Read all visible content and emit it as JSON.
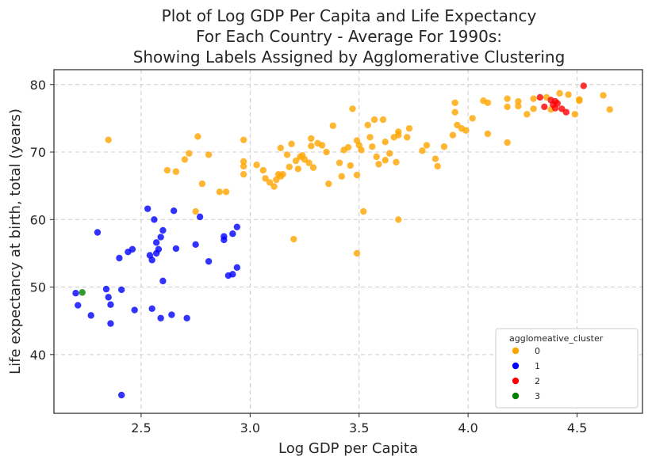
{
  "chart_data": {
    "type": "scatter",
    "title": [
      "Plot of Log GDP Per Capita and Life Expectancy",
      "For Each Country - Average For 1990s:",
      "Showing Labels Assigned by Agglomerative Clustering"
    ],
    "xlabel": "Log GDP per Capita",
    "ylabel": "Life expectancy at birth, total (years)",
    "xlim": [
      2.1,
      4.8
    ],
    "ylim": [
      31.3,
      82.2
    ],
    "xticks": [
      2.5,
      3.0,
      3.5,
      4.0,
      4.5
    ],
    "xtick_labels": [
      "2.5",
      "3.0",
      "3.5",
      "4.0",
      "4.5"
    ],
    "yticks": [
      40,
      50,
      60,
      70,
      80
    ],
    "ytick_labels": [
      "40",
      "50",
      "60",
      "70",
      "80"
    ],
    "grid": true,
    "legend": {
      "title": "agglomeative_cluster",
      "position": "bottom-right"
    },
    "series": [
      {
        "name": "0",
        "color": "#FFA500",
        "points": [
          [
            2.35,
            71.8
          ],
          [
            2.76,
            72.3
          ],
          [
            2.72,
            69.8
          ],
          [
            2.78,
            65.3
          ],
          [
            2.62,
            67.3
          ],
          [
            2.66,
            67.1
          ],
          [
            2.7,
            68.9
          ],
          [
            2.75,
            61.2
          ],
          [
            2.81,
            69.6
          ],
          [
            2.86,
            64.1
          ],
          [
            2.89,
            64.1
          ],
          [
            2.97,
            71.8
          ],
          [
            2.97,
            68.6
          ],
          [
            2.97,
            67.9
          ],
          [
            2.97,
            66.7
          ],
          [
            3.03,
            68.1
          ],
          [
            3.06,
            67.3
          ],
          [
            3.07,
            66.1
          ],
          [
            3.09,
            65.5
          ],
          [
            3.11,
            64.9
          ],
          [
            3.12,
            65.9
          ],
          [
            3.13,
            66.7
          ],
          [
            3.14,
            66.4
          ],
          [
            3.15,
            66.7
          ],
          [
            3.14,
            70.6
          ],
          [
            3.17,
            69.6
          ],
          [
            3.18,
            67.8
          ],
          [
            3.19,
            71.2
          ],
          [
            3.2,
            57.1
          ],
          [
            3.21,
            68.7
          ],
          [
            3.22,
            67.5
          ],
          [
            3.23,
            69.3
          ],
          [
            3.24,
            69.5
          ],
          [
            3.25,
            68.9
          ],
          [
            3.27,
            68.4
          ],
          [
            3.28,
            70.9
          ],
          [
            3.29,
            67.7
          ],
          [
            3.28,
            72.0
          ],
          [
            3.31,
            71.3
          ],
          [
            3.33,
            71.0
          ],
          [
            3.35,
            70.0
          ],
          [
            3.36,
            65.3
          ],
          [
            3.38,
            73.9
          ],
          [
            3.41,
            68.4
          ],
          [
            3.42,
            66.4
          ],
          [
            3.43,
            70.3
          ],
          [
            3.45,
            70.7
          ],
          [
            3.46,
            68.0
          ],
          [
            3.47,
            76.4
          ],
          [
            3.49,
            71.7
          ],
          [
            3.49,
            66.6
          ],
          [
            3.49,
            55.0
          ],
          [
            3.5,
            71.0
          ],
          [
            3.51,
            70.3
          ],
          [
            3.52,
            61.2
          ],
          [
            3.54,
            74.0
          ],
          [
            3.55,
            72.2
          ],
          [
            3.56,
            70.8
          ],
          [
            3.57,
            74.8
          ],
          [
            3.58,
            69.3
          ],
          [
            3.59,
            68.2
          ],
          [
            3.61,
            74.8
          ],
          [
            3.62,
            71.5
          ],
          [
            3.62,
            68.8
          ],
          [
            3.64,
            69.8
          ],
          [
            3.66,
            72.2
          ],
          [
            3.67,
            68.5
          ],
          [
            3.68,
            73.0
          ],
          [
            3.68,
            72.5
          ],
          [
            3.68,
            60.0
          ],
          [
            3.72,
            72.2
          ],
          [
            3.73,
            73.5
          ],
          [
            3.79,
            70.2
          ],
          [
            3.81,
            71.0
          ],
          [
            3.85,
            69.0
          ],
          [
            3.86,
            67.9
          ],
          [
            3.89,
            70.8
          ],
          [
            3.93,
            72.5
          ],
          [
            3.94,
            77.3
          ],
          [
            3.94,
            75.9
          ],
          [
            3.95,
            74.0
          ],
          [
            3.97,
            73.5
          ],
          [
            3.99,
            73.2
          ],
          [
            4.02,
            75.0
          ],
          [
            4.07,
            77.6
          ],
          [
            4.09,
            77.3
          ],
          [
            4.09,
            72.7
          ],
          [
            4.18,
            77.9
          ],
          [
            4.18,
            76.7
          ],
          [
            4.18,
            71.4
          ],
          [
            4.23,
            77.5
          ],
          [
            4.23,
            76.8
          ],
          [
            4.27,
            75.6
          ],
          [
            4.3,
            77.9
          ],
          [
            4.3,
            76.4
          ],
          [
            4.36,
            78.1
          ],
          [
            4.38,
            76.3
          ],
          [
            4.42,
            78.7
          ],
          [
            4.46,
            78.5
          ],
          [
            4.49,
            75.6
          ],
          [
            4.51,
            77.8
          ],
          [
            4.51,
            77.6
          ],
          [
            4.62,
            78.4
          ],
          [
            4.65,
            76.3
          ]
        ]
      },
      {
        "name": "1",
        "color": "#0000FF",
        "points": [
          [
            2.2,
            49.1
          ],
          [
            2.21,
            47.3
          ],
          [
            2.27,
            45.8
          ],
          [
            2.3,
            58.1
          ],
          [
            2.34,
            49.7
          ],
          [
            2.35,
            48.5
          ],
          [
            2.36,
            47.4
          ],
          [
            2.36,
            44.6
          ],
          [
            2.4,
            54.3
          ],
          [
            2.41,
            49.6
          ],
          [
            2.41,
            34.0
          ],
          [
            2.44,
            55.2
          ],
          [
            2.46,
            55.6
          ],
          [
            2.47,
            46.6
          ],
          [
            2.53,
            61.6
          ],
          [
            2.54,
            54.7
          ],
          [
            2.55,
            54.0
          ],
          [
            2.55,
            46.8
          ],
          [
            2.56,
            60.0
          ],
          [
            2.57,
            55.0
          ],
          [
            2.57,
            56.6
          ],
          [
            2.58,
            55.6
          ],
          [
            2.59,
            57.4
          ],
          [
            2.6,
            58.4
          ],
          [
            2.6,
            50.9
          ],
          [
            2.59,
            45.4
          ],
          [
            2.64,
            45.9
          ],
          [
            2.65,
            61.3
          ],
          [
            2.66,
            55.7
          ],
          [
            2.71,
            45.4
          ],
          [
            2.75,
            56.3
          ],
          [
            2.77,
            60.4
          ],
          [
            2.81,
            53.8
          ],
          [
            2.88,
            57.0
          ],
          [
            2.88,
            57.5
          ],
          [
            2.9,
            51.7
          ],
          [
            2.92,
            51.9
          ],
          [
            2.92,
            57.9
          ],
          [
            2.94,
            58.9
          ],
          [
            2.94,
            52.9
          ]
        ]
      },
      {
        "name": "2",
        "color": "#FF0000",
        "points": [
          [
            4.33,
            78.1
          ],
          [
            4.35,
            76.7
          ],
          [
            4.38,
            77.7
          ],
          [
            4.4,
            77.5
          ],
          [
            4.39,
            77.0
          ],
          [
            4.41,
            77.2
          ],
          [
            4.4,
            76.5
          ],
          [
            4.43,
            76.4
          ],
          [
            4.45,
            75.9
          ],
          [
            4.53,
            79.8
          ]
        ]
      },
      {
        "name": "3",
        "color": "#008000",
        "points": [
          [
            2.23,
            49.2
          ]
        ]
      }
    ]
  }
}
